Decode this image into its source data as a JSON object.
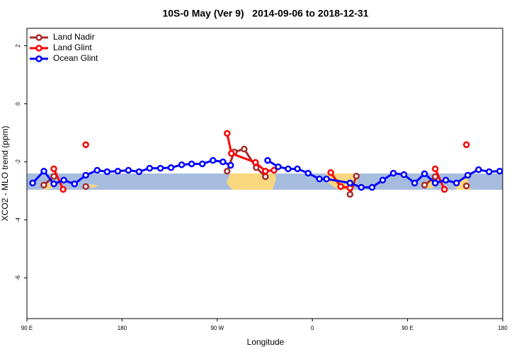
{
  "chart_data": {
    "type": "line",
    "title": "10S-0 May (Ver 9)   2014-09-06 to 2018-12-31",
    "x_label": "Longitude",
    "y_label": "XCO2 - MLO trend (ppm)",
    "xlim": [
      90,
      540
    ],
    "xticks": [
      {
        "value": 90,
        "label": "90 E"
      },
      {
        "value": 180,
        "label": "180"
      },
      {
        "value": 270,
        "label": "90 W"
      },
      {
        "value": 360,
        "label": "0"
      },
      {
        "value": 450,
        "label": "90 E"
      },
      {
        "value": 540,
        "label": "180"
      }
    ],
    "ylim": [
      -7.4,
      2.6
    ],
    "yticks": [
      -6,
      -4,
      -2,
      0,
      2
    ],
    "legend": "top-left",
    "series": [
      {
        "name": "Land Nadir",
        "color": "#a52a2a",
        "x": [
          106,
          115.5,
          null,
          145.7,
          null,
          279.4,
          286.1,
          295.5,
          306.9,
          315.6,
          null,
          395.6,
          401.6,
          null,
          466.1,
          476.2,
          null,
          505.7
        ],
        "values": [
          -2.8,
          -2.5,
          null,
          -2.85,
          null,
          -2.32,
          -1.66,
          -1.56,
          -2.2,
          -2.51,
          null,
          -3.12,
          -2.49,
          null,
          -2.8,
          -2.51,
          null,
          -2.83
        ]
      },
      {
        "name": "Land Glint",
        "color": "#ff0000",
        "x": [
          115.5,
          124.3,
          null,
          145.7,
          null,
          279.4,
          283.4,
          306.2,
          315.6,
          323.7,
          null,
          377.4,
          386.8,
          395.6,
          null,
          476.2,
          484.9,
          null,
          505.7
        ],
        "values": [
          -2.24,
          -2.95,
          null,
          -1.41,
          null,
          -1.02,
          -1.71,
          -2.02,
          -2.32,
          -2.29,
          null,
          -2.37,
          -2.85,
          -2.9,
          null,
          -2.24,
          -2.95,
          null,
          -1.41
        ]
      },
      {
        "name": "Ocean Glint",
        "color": "#0000ff",
        "x": [
          95.4,
          106.1,
          115.5,
          124.9,
          135,
          145.7,
          156.5,
          165.9,
          176,
          186,
          196.1,
          206.1,
          216.3,
          226.3,
          236.4,
          245.8,
          255.9,
          266,
          275.4,
          282.7,
          null,
          317.7,
          327.7,
          337.1,
          345.9,
          356,
          366.7,
          373.4,
          395.6,
          406.3,
          416.4,
          426.5,
          436.6,
          446.6,
          456.7,
          466.1,
          476.2,
          486.2,
          496.3,
          507,
          517.2,
          527.2,
          537.2
        ],
        "values": [
          -2.73,
          -2.32,
          -2.76,
          -2.63,
          -2.76,
          -2.46,
          -2.29,
          -2.34,
          -2.32,
          -2.29,
          -2.34,
          -2.22,
          -2.22,
          -2.2,
          -2.1,
          -2.07,
          -2.07,
          -1.95,
          -2.0,
          -2.12,
          null,
          -1.95,
          -2.17,
          -2.24,
          -2.24,
          -2.39,
          -2.59,
          -2.59,
          -2.73,
          -2.88,
          -2.88,
          -2.63,
          -2.39,
          -2.44,
          -2.73,
          -2.41,
          -2.73,
          -2.63,
          -2.73,
          -2.46,
          -2.27,
          -2.34,
          -2.32
        ]
      }
    ]
  }
}
